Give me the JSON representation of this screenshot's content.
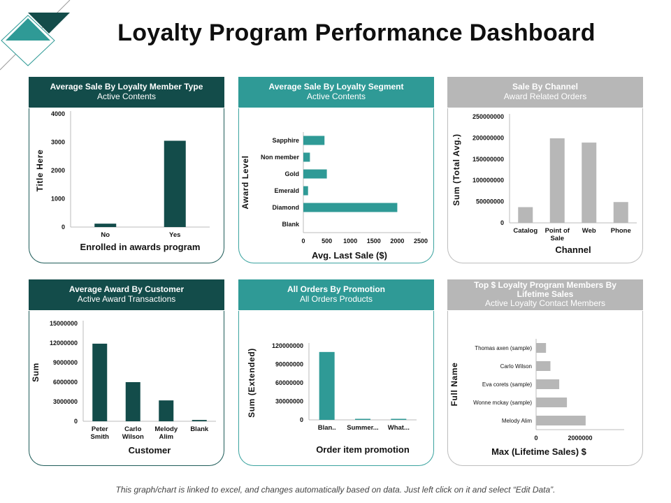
{
  "page": {
    "title": "Loyalty Program Performance Dashboard"
  },
  "panels": [
    {
      "title": "Average Sale By Loyalty Member Type",
      "subtitle": "Active Contents"
    },
    {
      "title": "Average Sale By Loyalty Segment",
      "subtitle": "Active Contents"
    },
    {
      "title": "Sale By Channel",
      "subtitle": "Award Related Orders"
    },
    {
      "title": "Average Award By Customer",
      "subtitle": "Active Award Transactions"
    },
    {
      "title": "All Orders By Promotion",
      "subtitle": "All Orders Products"
    },
    {
      "title": "Top $ Loyalty Program Members By Lifetime Sales",
      "subtitle": "Active Loyalty Contact Members"
    }
  ],
  "footnote": "This graph/chart is linked to excel, and changes automatically based on data. Just left click on it and select “Edit Data”.",
  "colors": {
    "dark": "#134c4a",
    "teal": "#2f9a96",
    "gray": "#b7b7b7"
  },
  "chart_data": [
    {
      "type": "bar",
      "orientation": "vertical",
      "categories": [
        "No",
        "Yes"
      ],
      "values": [
        120,
        3050
      ],
      "yticks": [
        "0",
        "1000",
        "2000",
        "3000",
        "4000"
      ],
      "ylim": [
        0,
        4000
      ],
      "xlabel": "Enrolled in awards program",
      "ylabel": "Title Here",
      "color": "#134c4a"
    },
    {
      "type": "bar",
      "orientation": "horizontal",
      "categories": [
        "Sapphire",
        "Non member",
        "Gold",
        "Emerald",
        "Diamond",
        "Blank"
      ],
      "values": [
        450,
        140,
        500,
        100,
        2000,
        0
      ],
      "xticks": [
        "0",
        "500",
        "1000",
        "1500",
        "2000",
        "2500"
      ],
      "xlim": [
        0,
        2500
      ],
      "xlabel": "Avg. Last Sale ($)",
      "ylabel": "Award Level",
      "color": "#2f9a96"
    },
    {
      "type": "bar",
      "orientation": "vertical",
      "categories": [
        "Catalog",
        "Point of Sale",
        "Web",
        "Phone"
      ],
      "values": [
        37000000,
        199000000,
        189000000,
        49000000
      ],
      "yticks": [
        "0",
        "50000000",
        "100000000",
        "150000000",
        "200000000",
        "250000000"
      ],
      "ylim": [
        0,
        250000000
      ],
      "xlabel": "Channel",
      "ylabel": "Sum (Total Avg.)",
      "color": "#b7b7b7"
    },
    {
      "type": "bar",
      "orientation": "vertical",
      "categories": [
        "Peter Smith",
        "Carlo Wilson",
        "Melody Alim",
        "Blank"
      ],
      "values": [
        11900000,
        6000000,
        3200000,
        200000
      ],
      "yticks": [
        "0",
        "3000000",
        "6000000",
        "9000000",
        "12000000",
        "15000000"
      ],
      "ylim": [
        0,
        15000000
      ],
      "xlabel": "Customer",
      "ylabel": "Sum",
      "color": "#134c4a"
    },
    {
      "type": "bar",
      "orientation": "vertical",
      "categories": [
        "Blan..",
        "Summer...",
        "What..."
      ],
      "values": [
        110000000,
        1500000,
        1000000
      ],
      "yticks": [
        "0",
        "30000000",
        "60000000",
        "90000000",
        "120000000"
      ],
      "ylim": [
        0,
        120000000
      ],
      "xlabel": "Order item promotion",
      "ylabel": "Sum (Extended)",
      "color": "#2f9a96"
    },
    {
      "type": "bar",
      "orientation": "horizontal",
      "categories": [
        "Thomas axen (sample)",
        "Carlo Wilson",
        "Eva corets (sample)",
        "Wonne mckay (sample)",
        "Melody Alim"
      ],
      "values": [
        450000,
        650000,
        1050000,
        1400000,
        2250000
      ],
      "xticks": [
        "0",
        "2000000"
      ],
      "xlim": [
        0,
        4000000
      ],
      "xlabel": "Max (Lifetime Sales) $",
      "ylabel": "Full Name",
      "color": "#b7b7b7"
    }
  ]
}
